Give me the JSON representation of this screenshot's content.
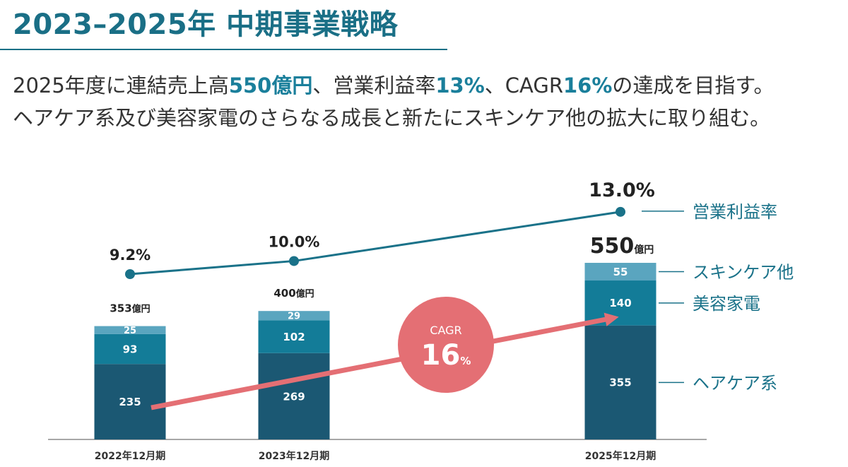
{
  "header": {
    "title": "2023–2025年 中期事業戦略"
  },
  "subtitle": {
    "line1": [
      {
        "text": "2025年度に連結売上高",
        "highlight": false
      },
      {
        "text": "550億円",
        "highlight": true
      },
      {
        "text": "、営業利益率",
        "highlight": false
      },
      {
        "text": "13%",
        "highlight": true
      },
      {
        "text": "、CAGR",
        "highlight": false
      },
      {
        "text": "16%",
        "highlight": true
      },
      {
        "text": "の達成を目指す。",
        "highlight": false
      }
    ],
    "line2": "ヘアケア系及び美容家電のさらなる成長と新たにスキンケア他の拡大に取り組む。"
  },
  "chart_data": {
    "type": "bar",
    "stacked": true,
    "categories": [
      "2022年12月期",
      "2023年12月期",
      "2025年12月期"
    ],
    "series": [
      {
        "name": "ヘアケア系",
        "values": [
          235,
          269,
          355
        ],
        "color": "#1b5873"
      },
      {
        "name": "美容家電",
        "values": [
          93,
          102,
          140
        ],
        "color": "#137c98"
      },
      {
        "name": "スキンケア他",
        "values": [
          25,
          29,
          55
        ],
        "color": "#5aa5bf"
      }
    ],
    "totals": [
      {
        "value": "353",
        "unit": "億円"
      },
      {
        "value": "400",
        "unit": "億円"
      },
      {
        "value": "550",
        "unit": "億円"
      }
    ],
    "line_series": {
      "name": "営業利益率",
      "values": [
        9.2,
        10.0,
        13.0
      ],
      "labels": [
        "9.2%",
        "10.0%",
        "13.0%"
      ],
      "color": "#1a7289"
    },
    "cagr": {
      "label": "CAGR",
      "value": "16",
      "unit": "%",
      "color": "#e46f74"
    },
    "axis_color": "#8a8a8a"
  }
}
